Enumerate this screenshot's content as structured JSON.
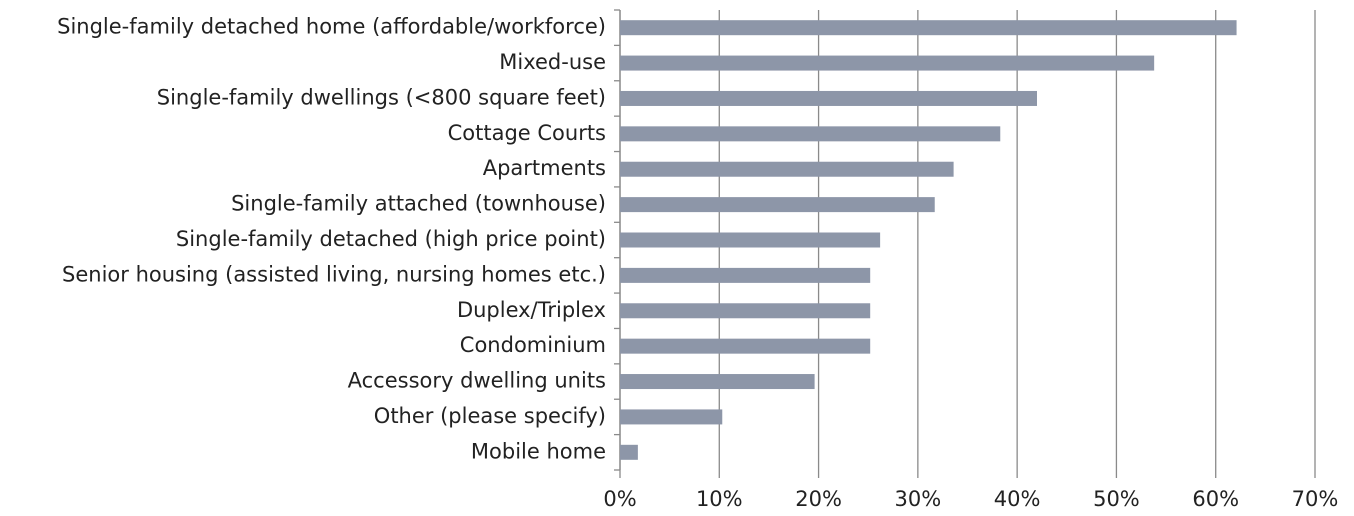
{
  "chart_data": {
    "type": "bar",
    "orientation": "horizontal",
    "categories": [
      "Single-family detached home (affordable/workforce)",
      "Mixed-use ",
      "Single-family dwellings (<800 square feet)",
      "Cottage Courts ",
      "Apartments",
      "Single-family attached (townhouse)",
      "Single-family detached (high price point)",
      "Senior housing (assisted living, nursing homes etc.)",
      "Duplex/Triplex",
      "Condominium",
      "Accessory dwelling units",
      "Other (please specify)",
      "Mobile home"
    ],
    "values": [
      62.1,
      53.8,
      42.0,
      38.3,
      33.6,
      31.7,
      26.2,
      25.2,
      25.2,
      25.2,
      19.6,
      10.3,
      1.8
    ],
    "color": "#8d96a8",
    "xlim": [
      0,
      70
    ],
    "xticks": [
      {
        "value": 0,
        "label": "0%"
      },
      {
        "value": 10,
        "label": "10%"
      },
      {
        "value": 20,
        "label": "20%"
      },
      {
        "value": 30,
        "label": "30%"
      },
      {
        "value": 40,
        "label": "40%"
      },
      {
        "value": 50,
        "label": "50%"
      },
      {
        "value": 60,
        "label": "60%"
      },
      {
        "value": 70,
        "label": "70%"
      }
    ],
    "grid": true
  }
}
